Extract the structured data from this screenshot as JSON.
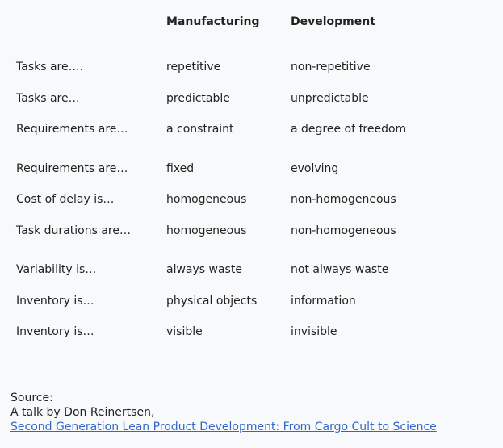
{
  "table": {
    "headers": [
      "",
      "Manufacturing",
      "Development"
    ],
    "groups": [
      [
        [
          "Tasks are….",
          "repetitive",
          "non-repetitive"
        ],
        [
          "Tasks are…",
          "predictable",
          "unpredictable"
        ],
        [
          "Requirements are…",
          "a constraint",
          "a degree of freedom"
        ]
      ],
      [
        [
          "Requirements are…",
          "fixed",
          "evolving"
        ],
        [
          "Cost of delay is…",
          "homogeneous",
          "non-homogeneous"
        ],
        [
          "Task durations are…",
          "homogeneous",
          "non-homogeneous"
        ]
      ],
      [
        [
          "Variability is…",
          "always waste",
          "not always waste"
        ],
        [
          "Inventory is…",
          "physical objects",
          "information"
        ],
        [
          "Inventory is…",
          "visible",
          "invisible"
        ]
      ]
    ]
  },
  "source": {
    "label": "Source:",
    "line": "A talk by Don Reinertsen,",
    "link_text": "Second Generation Lean Product Development: From Cargo Cult to Science"
  }
}
